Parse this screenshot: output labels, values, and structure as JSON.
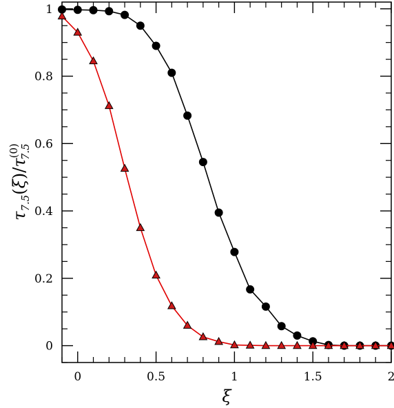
{
  "chart_data": {
    "type": "line",
    "xlabel": "ξ",
    "ylabel": {
      "tau": "τ",
      "sub": "7.5",
      "open": "(",
      "xi": "ξ",
      "close": ")",
      "slash": "/",
      "tau2": "τ",
      "sub2": "7.5",
      "sup2": "(0)"
    },
    "xlim": [
      -0.1,
      2.0
    ],
    "ylim": [
      -0.05,
      1.02
    ],
    "x_ticks": [
      0,
      0.5,
      1,
      1.5,
      2
    ],
    "x_tick_labels": [
      "0",
      "0.5",
      "1",
      "1.5",
      "2"
    ],
    "x_minor_step": 0.1,
    "y_ticks": [
      0,
      0.2,
      0.4,
      0.6,
      0.8,
      1
    ],
    "y_tick_labels": [
      "0",
      "0.2",
      "0.4",
      "0.6",
      "0.8",
      "1"
    ],
    "y_minor_step": 0.05,
    "grid": false,
    "series": [
      {
        "marker": "circle",
        "color": "#000000",
        "fill": "#000000",
        "x": [
          -0.1,
          0,
          0.1,
          0.2,
          0.3,
          0.4,
          0.5,
          0.6,
          0.7,
          0.8,
          0.9,
          1.0,
          1.1,
          1.2,
          1.3,
          1.4,
          1.5,
          1.6,
          1.7,
          1.8,
          1.9,
          2.0
        ],
        "values": [
          0.998,
          0.997,
          0.996,
          0.993,
          0.982,
          0.95,
          0.89,
          0.81,
          0.683,
          0.545,
          0.395,
          0.278,
          0.167,
          0.116,
          0.058,
          0.03,
          0.013,
          0.002,
          0.0,
          0.0,
          0.0,
          0.0
        ]
      },
      {
        "marker": "triangle",
        "color": "#e00000",
        "fill": "#cc1a1a",
        "x": [
          -0.1,
          0,
          0.1,
          0.2,
          0.3,
          0.4,
          0.5,
          0.6,
          0.7,
          0.8,
          0.9,
          1.0,
          1.1,
          1.2,
          1.3,
          1.4,
          1.5,
          1.6,
          1.7,
          1.8,
          1.9,
          2.0
        ],
        "values": [
          0.978,
          0.93,
          0.845,
          0.712,
          0.526,
          0.35,
          0.209,
          0.118,
          0.06,
          0.026,
          0.012,
          0.002,
          0.001,
          0.0,
          0.0,
          0.0,
          0.0,
          0.0,
          0.0,
          0.0,
          0.0,
          0.0
        ]
      }
    ]
  }
}
